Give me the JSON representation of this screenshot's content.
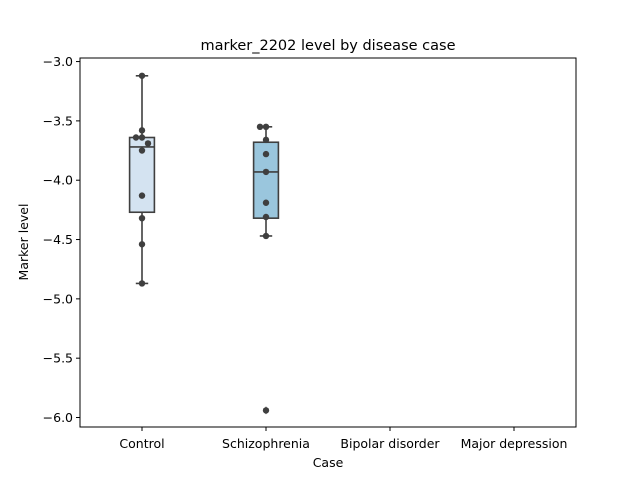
{
  "chart_data": {
    "type": "box",
    "title": "marker_2202 level by disease case",
    "xlabel": "Case",
    "ylabel": "Marker level",
    "ylim": [
      -6.08,
      -2.97
    ],
    "yticks": [
      -3.0,
      -3.5,
      -4.0,
      -4.5,
      -5.0,
      -5.5,
      -6.0
    ],
    "ytick_labels": [
      "−3.0",
      "−3.5",
      "−4.0",
      "−4.5",
      "−5.0",
      "−5.5",
      "−6.0"
    ],
    "categories": [
      "Control",
      "Schizophrenia",
      "Bipolar disorder",
      "Major depression"
    ],
    "boxes": [
      {
        "category": "Control",
        "color": "#d4e3f1",
        "q1": -4.27,
        "median": -3.72,
        "q3": -3.64,
        "whisker_low": -4.87,
        "whisker_high": -3.12,
        "fliers": []
      },
      {
        "category": "Schizophrenia",
        "color": "#9ac6dd",
        "q1": -4.32,
        "median": -3.93,
        "q3": -3.68,
        "whisker_low": -4.47,
        "whisker_high": -3.55,
        "fliers": [
          -5.94
        ]
      }
    ],
    "points": [
      {
        "category": "Control",
        "values": [
          -3.12,
          -3.58,
          -3.64,
          -3.64,
          -3.69,
          -3.75,
          -4.13,
          -4.32,
          -4.54,
          -4.87
        ]
      },
      {
        "category": "Schizophrenia",
        "values": [
          -3.55,
          -3.55,
          -3.66,
          -3.78,
          -3.93,
          -4.19,
          -4.31,
          -4.47,
          -5.94
        ]
      }
    ],
    "colors": {
      "box_edge": "#3f3f3f",
      "point": "#3f3f3f",
      "axis": "#000000"
    },
    "grid": false
  }
}
